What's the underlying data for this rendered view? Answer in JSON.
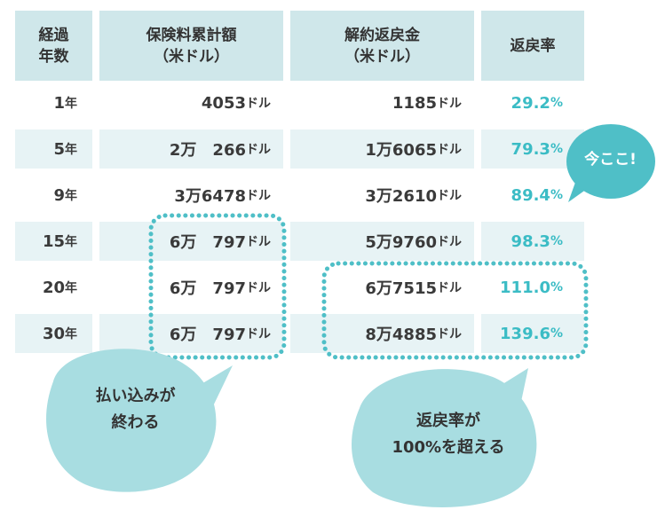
{
  "table": {
    "headers": {
      "years": [
        "経過",
        "年数"
      ],
      "premiums": [
        "保険料累計額",
        "（米ドル）"
      ],
      "refund": [
        "解約返戻金",
        "（米ドル）"
      ],
      "rate": [
        "返戻率"
      ]
    },
    "rows": [
      {
        "year": "1",
        "year_unit": "年",
        "premium": "4053",
        "premium_unit": "ドル",
        "refund": "1185",
        "refund_unit": "ドル",
        "rate": "29.2",
        "rate_unit": "%"
      },
      {
        "year": "5",
        "year_unit": "年",
        "premium": "2万　266",
        "premium_unit": "ドル",
        "refund": "1万6065",
        "refund_unit": "ドル",
        "rate": "79.3",
        "rate_unit": "%"
      },
      {
        "year": "9",
        "year_unit": "年",
        "premium": "3万6478",
        "premium_unit": "ドル",
        "refund": "3万2610",
        "refund_unit": "ドル",
        "rate": "89.4",
        "rate_unit": "%"
      },
      {
        "year": "15",
        "year_unit": "年",
        "premium": "6万　797",
        "premium_unit": "ドル",
        "refund": "5万9760",
        "refund_unit": "ドル",
        "rate": "98.3",
        "rate_unit": "%"
      },
      {
        "year": "20",
        "year_unit": "年",
        "premium": "6万　797",
        "premium_unit": "ドル",
        "refund": "6万7515",
        "refund_unit": "ドル",
        "rate": "111.0",
        "rate_unit": "%"
      },
      {
        "year": "30",
        "year_unit": "年",
        "premium": "6万　797",
        "premium_unit": "ドル",
        "refund": "8万4885",
        "refund_unit": "ドル",
        "rate": "139.6",
        "rate_unit": "%"
      }
    ]
  },
  "callouts": {
    "now": "今ここ!",
    "payment_done": [
      "払い込みが",
      "終わる"
    ],
    "over_100": [
      "返戻率が",
      "100%を超える"
    ]
  },
  "colors": {
    "header_bg": "#cfe7ea",
    "stripe_bg": "#e7f3f5",
    "accent": "#3bbcc5",
    "bubble": "#a8dde1",
    "dots": "#4fbfc7"
  }
}
